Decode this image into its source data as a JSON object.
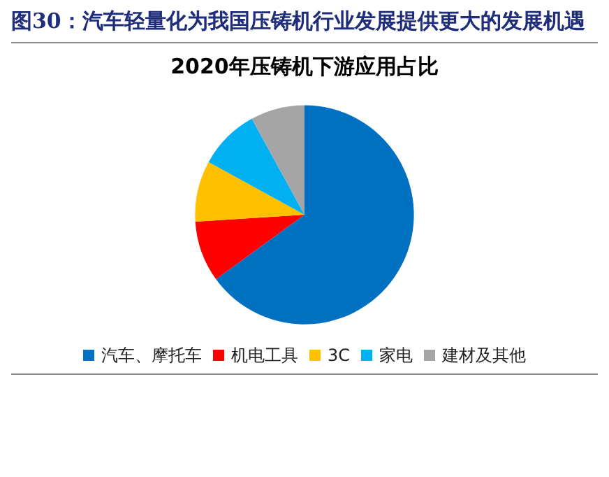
{
  "chart_data": {
    "type": "pie",
    "title": "图30：汽车轻量化为我国压铸机行业发展提供更大的发展机遇",
    "subtitle": "2020年压铸机下游应用占比",
    "categories": [
      "汽车、摩托车",
      "机电工具",
      "3C",
      "家电",
      "建材及其他"
    ],
    "values": [
      65,
      9,
      9,
      9,
      8
    ],
    "colors": [
      "#0070c0",
      "#ff0000",
      "#ffc000",
      "#00b0f0",
      "#a5a5a5"
    ],
    "legend": "bottom"
  }
}
